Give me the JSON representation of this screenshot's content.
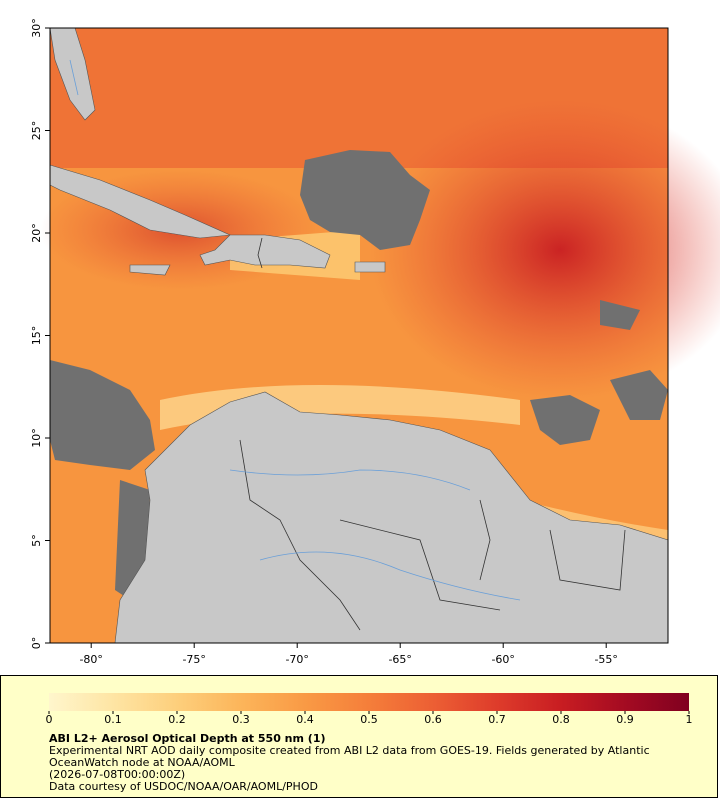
{
  "map": {
    "xlim": [
      -82,
      -52
    ],
    "xticks": [
      {
        "value": -80,
        "label": "-80°"
      },
      {
        "value": -75,
        "label": "-75°"
      },
      {
        "value": -70,
        "label": "-70°"
      },
      {
        "value": -65,
        "label": "-65°"
      },
      {
        "value": -60,
        "label": "-60°"
      },
      {
        "value": -55,
        "label": "-55°"
      }
    ],
    "ylim": [
      0,
      30
    ],
    "yticks": [
      {
        "value": 0,
        "label": "0°"
      },
      {
        "value": 5,
        "label": "5°"
      },
      {
        "value": 10,
        "label": "10°"
      },
      {
        "value": 15,
        "label": "15°"
      },
      {
        "value": 20,
        "label": "20°"
      },
      {
        "value": 25,
        "label": "25°"
      },
      {
        "value": 30,
        "label": "30°"
      }
    ]
  },
  "legend": {
    "title": "ABI L2+ Aerosol Optical Depth at 550 nm (1)",
    "description": "Experimental NRT AOD daily composite created from ABI L2 data from GOES-19. Fields generated by Atlantic OceanWatch node at NOAA/AOML",
    "timestamp": "(2026-07-08T00:00:00Z)",
    "credit": "Data courtesy of USDOC/NOAA/OAR/AOML/PHOD",
    "colorbar": {
      "lim": [
        0,
        1
      ],
      "ticks": [
        0,
        0.1,
        0.2,
        0.3,
        0.4,
        0.5,
        0.6,
        0.7,
        0.8,
        0.9,
        1
      ],
      "colormap": [
        "#fff6cc",
        "#fee5a4",
        "#fdcf7c",
        "#fcb55a",
        "#f99a45",
        "#f57e3a",
        "#ec5f34",
        "#de3c2b",
        "#c81d22",
        "#a40b22",
        "#800020"
      ]
    }
  }
}
